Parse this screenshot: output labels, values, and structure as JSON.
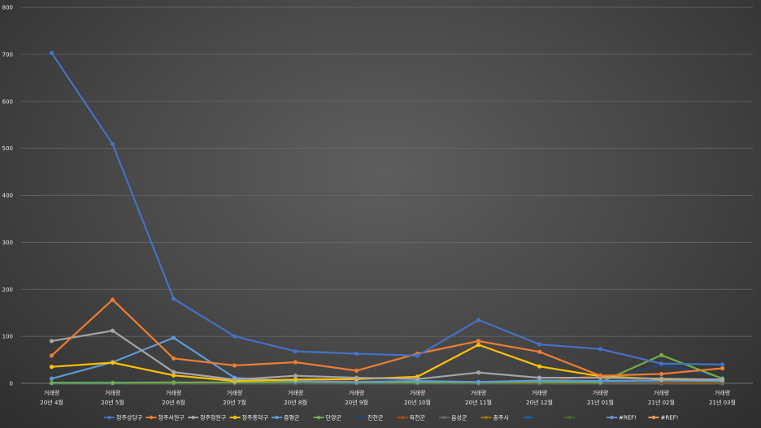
{
  "chart_data": {
    "type": "line",
    "title": "",
    "xlabel": "",
    "ylabel": "",
    "ylim": [
      0,
      800
    ],
    "yticks": [
      0,
      100,
      200,
      300,
      400,
      500,
      600,
      700,
      800
    ],
    "grid": true,
    "legend_position": "bottom",
    "categories": [
      {
        "top": "거래량",
        "bottom": "20년 4월"
      },
      {
        "top": "거래량",
        "bottom": "20년 5월"
      },
      {
        "top": "거래량",
        "bottom": "20년 6월"
      },
      {
        "top": "거래량",
        "bottom": "20년 7월"
      },
      {
        "top": "거래량",
        "bottom": "20년 8월"
      },
      {
        "top": "거래량",
        "bottom": "20년 9월"
      },
      {
        "top": "거래량",
        "bottom": "20년 10월"
      },
      {
        "top": "거래량",
        "bottom": "20년 11월"
      },
      {
        "top": "거래량",
        "bottom": "20년 12월"
      },
      {
        "top": "거래량",
        "bottom": "21년 01월"
      },
      {
        "top": "거래량",
        "bottom": "21년 02월"
      },
      {
        "top": "거래량",
        "bottom": "21년 03월"
      }
    ],
    "series": [
      {
        "name": "청주상당구",
        "color": "#4472c4",
        "values": [
          703,
          509,
          180,
          100,
          68,
          63,
          59,
          135,
          83,
          73,
          42,
          40
        ]
      },
      {
        "name": "청주서원구",
        "color": "#ed7d31",
        "values": [
          59,
          178,
          53,
          38,
          45,
          27,
          63,
          90,
          67,
          16,
          20,
          32
        ]
      },
      {
        "name": "청주청원구",
        "color": "#a5a5a5",
        "values": [
          90,
          112,
          24,
          8,
          16,
          12,
          9,
          23,
          12,
          12,
          10,
          8
        ]
      },
      {
        "name": "청주흥덕구",
        "color": "#ffc000",
        "values": [
          35,
          44,
          17,
          5,
          8,
          9,
          14,
          82,
          36,
          15,
          9,
          8
        ]
      },
      {
        "name": "증평군",
        "color": "#5b9bd5",
        "values": [
          10,
          45,
          97,
          12,
          4,
          3,
          5,
          3,
          6,
          5,
          6,
          5
        ]
      },
      {
        "name": "단양군",
        "color": "#70ad47",
        "values": [
          1,
          1,
          2,
          2,
          3,
          2,
          2,
          2,
          3,
          2,
          60,
          10
        ]
      },
      {
        "name": "진천군",
        "color": "#264478",
        "values": [
          2,
          2,
          3,
          2,
          2,
          2,
          2,
          3,
          3,
          2,
          40,
          12
        ]
      },
      {
        "name": "옥천군",
        "color": "#9e480e",
        "values": [
          1,
          1,
          2,
          1,
          8,
          4,
          3,
          2,
          2,
          18,
          3,
          3
        ]
      },
      {
        "name": "음성군",
        "color": "#636363",
        "values": [
          1,
          2,
          2,
          1,
          2,
          2,
          2,
          2,
          2,
          2,
          2,
          2
        ]
      },
      {
        "name": "충주시",
        "color": "#997300",
        "values": [
          1,
          1,
          1,
          1,
          1,
          1,
          1,
          1,
          1,
          1,
          1,
          1
        ]
      },
      {
        "name": "",
        "color": "#255e91",
        "values": [
          0,
          0,
          0,
          0,
          0,
          0,
          0,
          0,
          0,
          0,
          0,
          0
        ]
      },
      {
        "name": "",
        "color": "#43682b",
        "values": [
          0,
          0,
          0,
          0,
          0,
          0,
          0,
          0,
          0,
          0,
          0,
          0
        ]
      },
      {
        "name": "#REF!",
        "color": "#698ed0",
        "values": [
          0,
          0,
          0,
          0,
          0,
          0,
          0,
          0,
          0,
          0,
          0,
          0
        ]
      },
      {
        "name": "#REF!",
        "color": "#f1975a",
        "values": [
          0,
          0,
          0,
          0,
          0,
          0,
          0,
          0,
          0,
          0,
          0,
          0
        ]
      }
    ]
  }
}
